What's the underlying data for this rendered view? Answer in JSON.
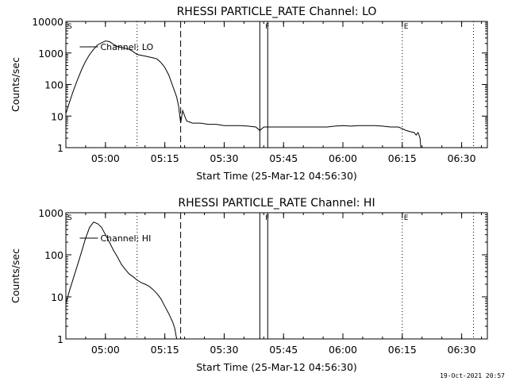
{
  "footer": {
    "date": "19-Oct-2021 20:57"
  },
  "chart_data": [
    {
      "type": "line",
      "title": "RHESSI PARTICLE_RATE Channel: LO",
      "xlabel": "Start Time (25-Mar-12 04:56:30)",
      "ylabel": "Counts/sec",
      "yscale": "log",
      "xlim": [
        -6.5,
        100
      ],
      "ylim": [
        1,
        10000
      ],
      "xtick_minutes": [
        3.5,
        18.5,
        33.5,
        48.5,
        63.5,
        78.5,
        93.5
      ],
      "xtick_labels": [
        "05:00",
        "05:15",
        "05:30",
        "05:45",
        "06:00",
        "06:15",
        "06:30"
      ],
      "ytick_values": [
        1,
        10,
        100,
        1000,
        10000
      ],
      "ytick_labels": [
        "1",
        "10",
        "100",
        "1000",
        "10000"
      ],
      "legend": "Channel: LO",
      "markers": [
        {
          "label": "S",
          "x": -6.5
        },
        {
          "label": "F",
          "x": 43.5
        },
        {
          "label": "E",
          "x": 78.5
        }
      ],
      "dotted_lines_x": [
        11.5,
        78.5,
        96.5
      ],
      "dashed_lines_x": [
        22.5
      ],
      "solid_lines_x": [
        42.5,
        44.5
      ],
      "series": [
        {
          "name": "Channel: LO",
          "x": [
            -6.5,
            -5.5,
            -4.5,
            -3.5,
            -2.5,
            -1.5,
            -0.5,
            0.5,
            1.5,
            2.5,
            3.5,
            4.5,
            5.5,
            6.5,
            7.5,
            8.5,
            9.5,
            10.5,
            11.5,
            12.5,
            13.5,
            14.5,
            15.5,
            16.5,
            17.5,
            18.5,
            19.5,
            20.5,
            21.5,
            22.0,
            22.5,
            23.0,
            24.0,
            25.5,
            27.5,
            29.5,
            31.5,
            33.5,
            35.5,
            37.5,
            39.5,
            41.5,
            42.5,
            43.5,
            45.5,
            47.5,
            49.5,
            51.5,
            53.5,
            55.5,
            57.5,
            59.5,
            61.5,
            63.5,
            65.5,
            67.5,
            69.5,
            71.5,
            73.5,
            75.5,
            77.5,
            78.5,
            79.5,
            80.5,
            81.5,
            82.0,
            82.5,
            83.0,
            83.2
          ],
          "y": [
            12,
            30,
            70,
            150,
            300,
            550,
            900,
            1300,
            1800,
            2100,
            2400,
            2300,
            1900,
            1600,
            1500,
            1400,
            1300,
            1100,
            900,
            850,
            800,
            750,
            700,
            650,
            500,
            350,
            200,
            90,
            40,
            20,
            6,
            15,
            7,
            6,
            6,
            5.5,
            5.5,
            5,
            5,
            5,
            4.8,
            4.5,
            3.5,
            4.5,
            4.5,
            4.5,
            4.5,
            4.5,
            4.5,
            4.5,
            4.5,
            4.5,
            4.8,
            5,
            4.8,
            5,
            5,
            5,
            4.8,
            4.5,
            4.5,
            4,
            3.5,
            3.2,
            3,
            2.5,
            3,
            2,
            1
          ]
        }
      ]
    },
    {
      "type": "line",
      "title": "RHESSI PARTICLE_RATE Channel: HI",
      "xlabel": "Start Time (25-Mar-12 04:56:30)",
      "ylabel": "Counts/sec",
      "yscale": "log",
      "xlim": [
        -6.5,
        100
      ],
      "ylim": [
        1,
        1000
      ],
      "xtick_minutes": [
        3.5,
        18.5,
        33.5,
        48.5,
        63.5,
        78.5,
        93.5
      ],
      "xtick_labels": [
        "05:00",
        "05:15",
        "05:30",
        "05:45",
        "06:00",
        "06:15",
        "06:30"
      ],
      "ytick_values": [
        1,
        10,
        100,
        1000
      ],
      "ytick_labels": [
        "1",
        "10",
        "100",
        "1000"
      ],
      "legend": "Channel: HI",
      "markers": [
        {
          "label": "S",
          "x": -6.5
        },
        {
          "label": "F",
          "x": 43.5
        },
        {
          "label": "E",
          "x": 78.5
        }
      ],
      "dotted_lines_x": [
        11.5,
        78.5,
        96.5
      ],
      "dashed_lines_x": [
        22.5
      ],
      "solid_lines_x": [
        42.5,
        44.5
      ],
      "series": [
        {
          "name": "Channel: HI",
          "x": [
            -6.5,
            -5.5,
            -4.5,
            -3.5,
            -2.5,
            -1.5,
            -0.5,
            0.5,
            1.5,
            2.5,
            3.5,
            4.5,
            5.5,
            6.5,
            7.5,
            8.5,
            9.5,
            10.5,
            11.5,
            12.5,
            13.5,
            14.5,
            15.5,
            16.5,
            17.5,
            18.5,
            19.5,
            20.5,
            21.0,
            21.5
          ],
          "y": [
            7,
            15,
            30,
            60,
            120,
            250,
            450,
            600,
            550,
            450,
            300,
            200,
            130,
            90,
            60,
            45,
            35,
            30,
            25,
            22,
            20,
            18,
            15,
            12,
            9,
            6,
            4,
            2.5,
            1.8,
            1
          ]
        }
      ]
    }
  ]
}
